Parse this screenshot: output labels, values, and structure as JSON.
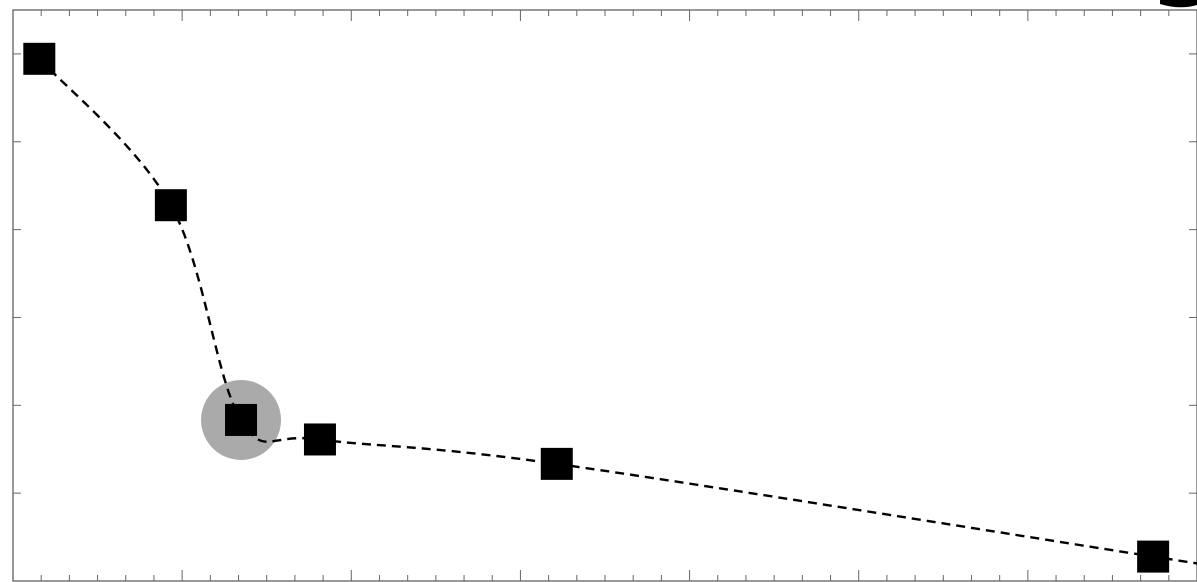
{
  "chart_data": {
    "type": "line",
    "title": "",
    "xlabel": "",
    "ylabel": "",
    "grid": false,
    "line_style": "dashed",
    "marker": "filled-square",
    "x": [
      0.3,
      1.8,
      2.6,
      3.5,
      6.2,
      13.0
    ],
    "y": [
      0.95,
      0.8,
      0.58,
      0.56,
      0.535,
      0.44
    ],
    "xlim": [
      0,
      13.5
    ],
    "ylim": [
      0.415,
      1.0
    ],
    "highlighted_point_index": 2,
    "colors": {
      "marker": "#000000",
      "line": "#000000",
      "highlight": "#aaaaaa",
      "frame": "#555555"
    },
    "clipped_corner_label": ""
  }
}
